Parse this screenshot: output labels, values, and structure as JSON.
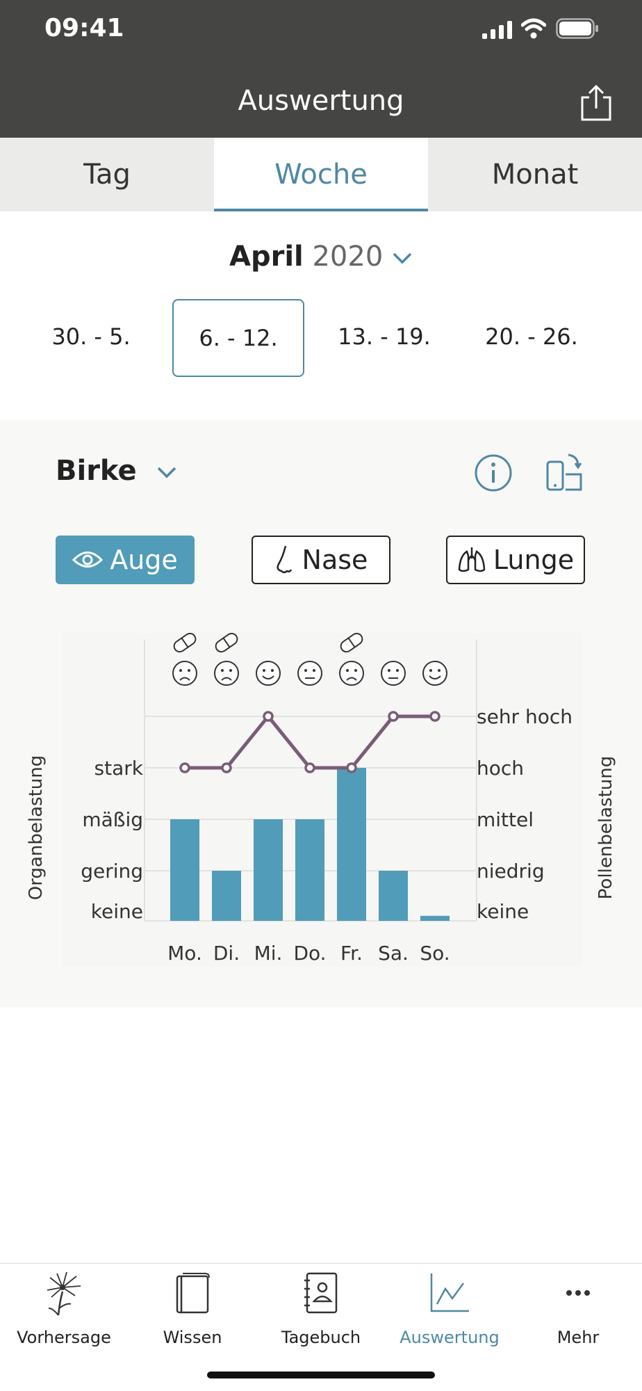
{
  "status": {
    "time": "09:41"
  },
  "header": {
    "title": "Auswertung",
    "share_icon": "share-icon"
  },
  "tabs": [
    {
      "label": "Tag"
    },
    {
      "label": "Woche",
      "active": true
    },
    {
      "label": "Monat"
    }
  ],
  "period": {
    "month": "April",
    "year": "2020"
  },
  "weeks": [
    {
      "label": "30. - 5."
    },
    {
      "label": "6. - 12.",
      "selected": true
    },
    {
      "label": "13. - 19."
    },
    {
      "label": "20. - 26."
    }
  ],
  "allergen": {
    "name": "Birke"
  },
  "organs": [
    {
      "label": "Auge",
      "icon": "eye-icon",
      "active": true
    },
    {
      "label": "Nase",
      "icon": "nose-icon"
    },
    {
      "label": "Lunge",
      "icon": "lungs-icon"
    }
  ],
  "chart_data": {
    "type": "bar",
    "categories": [
      "Mo.",
      "Di.",
      "Mi.",
      "Do.",
      "Fr.",
      "Sa.",
      "So."
    ],
    "y_left_label": "Organbelastung",
    "y_right_label": "Pollenbelastung",
    "y_left_ticks": [
      "keine",
      "gering",
      "mäßig",
      "stark"
    ],
    "y_right_ticks": [
      "keine",
      "niedrig",
      "mittel",
      "hoch",
      "sehr hoch"
    ],
    "bars": {
      "name": "Organbelastung",
      "values": [
        2,
        1,
        2,
        2,
        3,
        1,
        0.1
      ]
    },
    "line": {
      "name": "Pollenbelastung",
      "values": [
        3,
        3,
        4,
        3,
        3,
        4,
        4
      ]
    },
    "moods": [
      "sad",
      "sad",
      "happy",
      "neutral",
      "sad",
      "neutral",
      "happy"
    ],
    "medication": [
      true,
      true,
      false,
      false,
      true,
      false,
      false
    ],
    "colors": {
      "bar": "#519cb8",
      "line": "#7a5c78",
      "grid": "#e2e2e2"
    }
  },
  "nav": [
    {
      "label": "Vorhersage",
      "icon": "dandelion-icon"
    },
    {
      "label": "Wissen",
      "icon": "book-icon"
    },
    {
      "label": "Tagebuch",
      "icon": "diary-icon"
    },
    {
      "label": "Auswertung",
      "icon": "chart-icon",
      "active": true
    },
    {
      "label": "Mehr",
      "icon": "more-icon"
    }
  ]
}
